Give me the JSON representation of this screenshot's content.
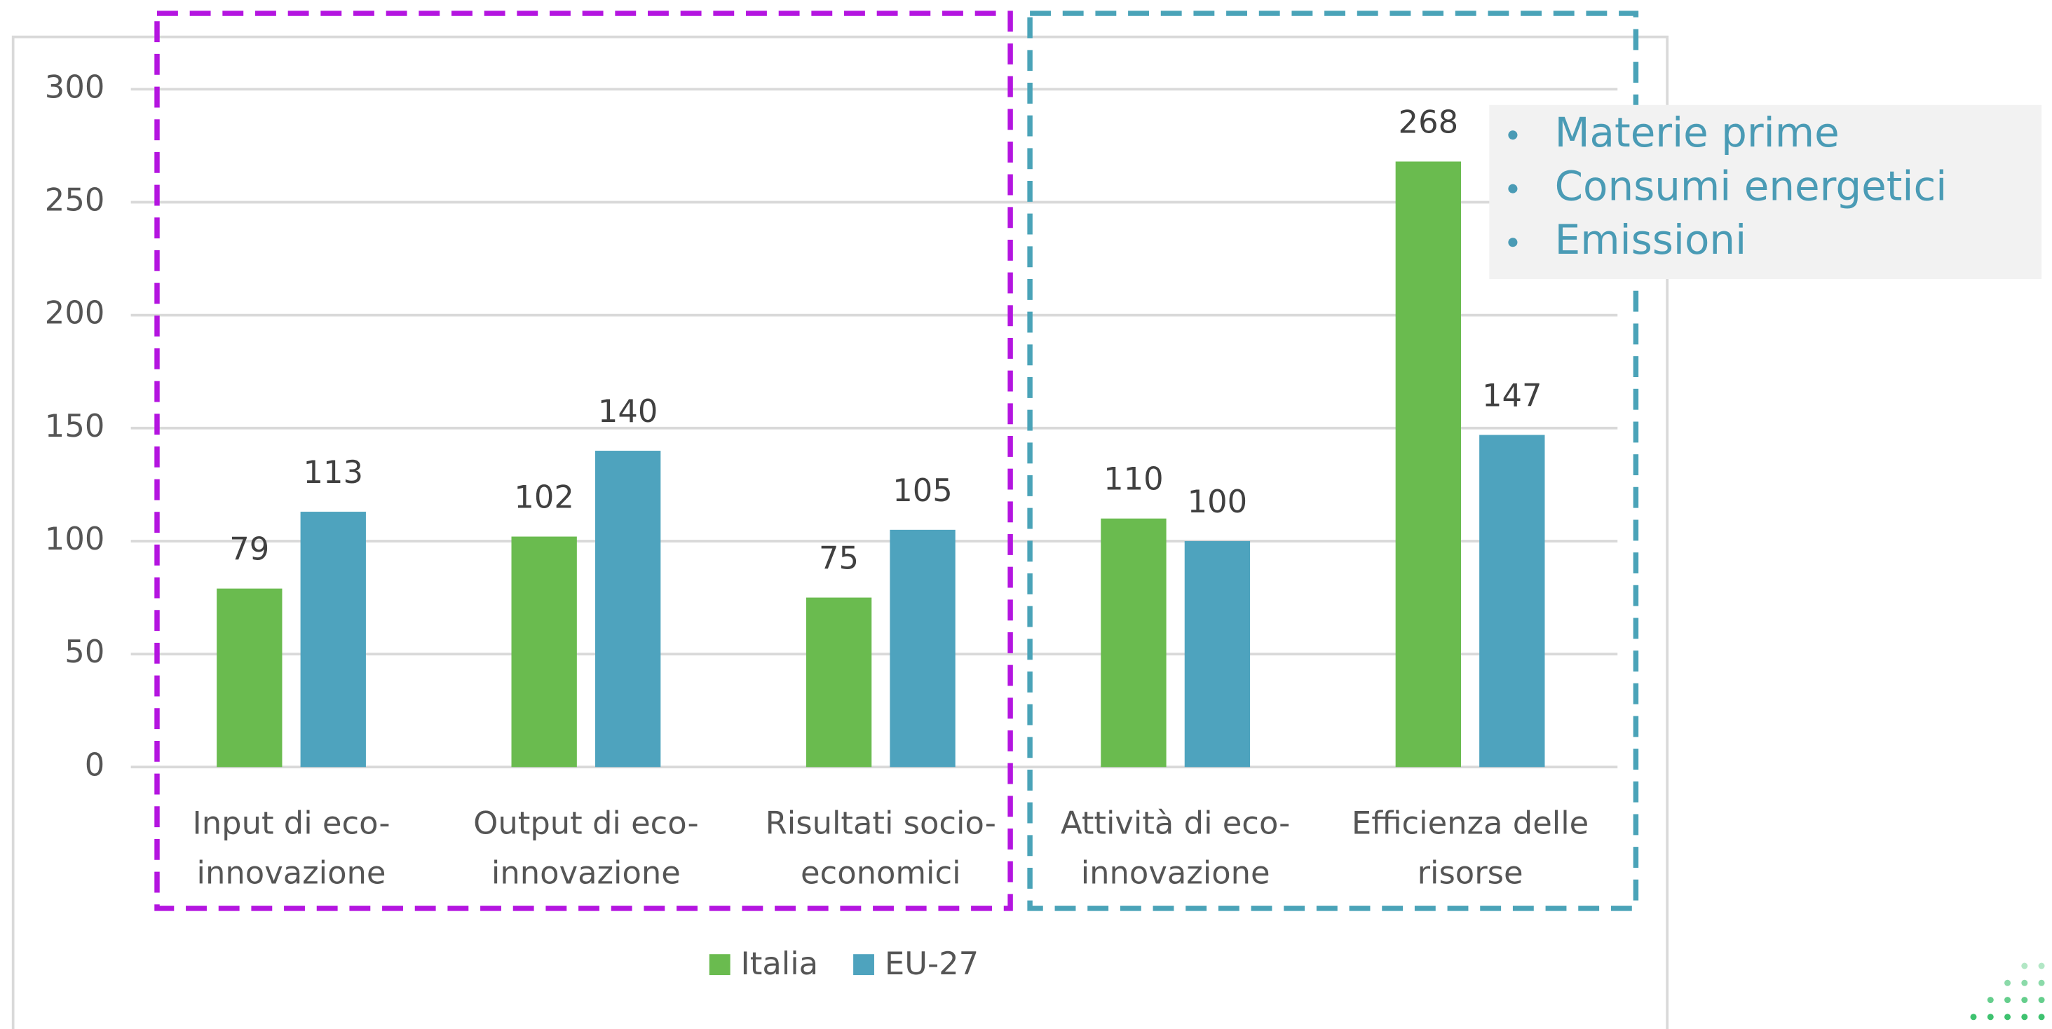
{
  "chart_data": {
    "type": "bar",
    "categories": [
      "Input di eco-\ninnovazione",
      "Output di eco-\ninnovazione",
      "Risultati socio-\neconomici",
      "Attività di eco-\ninnovazione",
      "Efficienza delle\nrisorse"
    ],
    "series": [
      {
        "name": "Italia",
        "color": "#6abb4f",
        "values": [
          79,
          102,
          75,
          110,
          268
        ]
      },
      {
        "name": "EU-27",
        "color": "#4ea3be",
        "values": [
          113,
          140,
          105,
          100,
          147
        ]
      }
    ],
    "ylim": [
      0,
      300
    ],
    "yticks": [
      0,
      50,
      100,
      150,
      200,
      250,
      300
    ],
    "grid": true,
    "legend": "bottom",
    "annotations": [
      "Materie prime",
      "Consumi energetici",
      "Emissioni"
    ]
  }
}
